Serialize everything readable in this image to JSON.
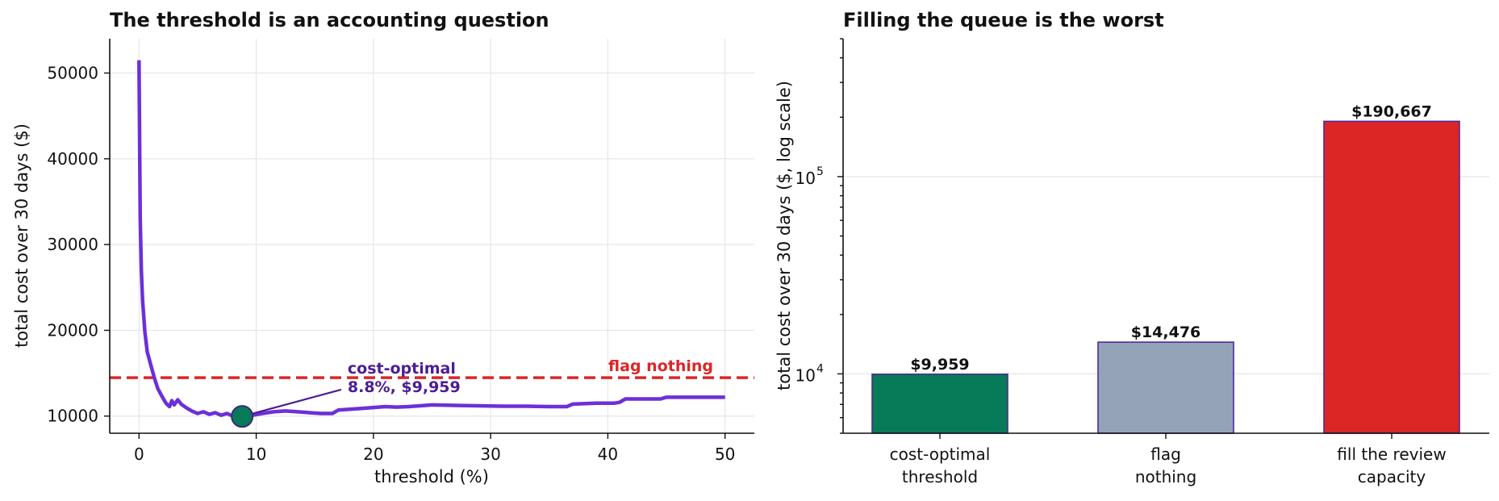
{
  "colors": {
    "line": "#6d2fd8",
    "optimal_marker": "#077a57",
    "optimal_marker_edge": "#3b2a7a",
    "flag_nothing": "#dc2626",
    "annotation_text": "#4c1d95",
    "bar_edge": "#4c2a9a"
  },
  "chart_data": [
    {
      "type": "line",
      "title": "The threshold is an accounting question",
      "xlabel": "threshold (%)",
      "ylabel": "total cost over 30 days ($)",
      "xlim": [
        -2.5,
        52.5
      ],
      "ylim": [
        8000,
        54000
      ],
      "x_ticks": [
        0,
        10,
        20,
        30,
        40,
        50
      ],
      "y_ticks": [
        10000,
        20000,
        30000,
        40000,
        50000
      ],
      "grid": true,
      "series": [
        {
          "x": [
            0,
            0.1,
            0.2,
            0.3,
            0.5,
            0.7,
            1.0,
            1.3,
            1.6,
            2.0,
            2.3,
            2.6,
            2.8,
            3.0,
            3.3,
            3.6,
            4.0,
            4.5,
            5.0,
            5.5,
            6.0,
            6.5,
            7.0,
            7.5,
            8.0,
            8.8,
            9.5,
            10.5,
            11.5,
            12.5,
            13.5,
            14.5,
            15.5,
            16.5,
            17.0,
            18.0,
            19.0,
            20.0,
            21.0,
            22.0,
            23.0,
            24.0,
            25.0,
            27.0,
            29.0,
            31.0,
            33.0,
            35.0,
            36.5,
            37.0,
            39.0,
            40.5,
            41.0,
            41.5,
            43.0,
            44.5,
            45.0,
            47.0,
            50.0
          ],
          "y": [
            51500,
            33000,
            27000,
            23500,
            19800,
            17500,
            16000,
            14500,
            13200,
            12200,
            11500,
            11100,
            11800,
            11300,
            11900,
            11400,
            11000,
            10600,
            10300,
            10500,
            10200,
            10400,
            10100,
            10300,
            10000,
            9959,
            10050,
            10300,
            10500,
            10600,
            10500,
            10400,
            10300,
            10300,
            10700,
            10800,
            10900,
            11000,
            11100,
            11050,
            11100,
            11200,
            11300,
            11250,
            11200,
            11150,
            11150,
            11100,
            11100,
            11400,
            11500,
            11500,
            11600,
            12000,
            12000,
            12000,
            12200,
            12200,
            12200
          ]
        }
      ],
      "reference_line": {
        "y": 14476,
        "label": "flag nothing"
      },
      "optimum": {
        "x": 8.8,
        "y": 9959
      },
      "annotation": {
        "line1": "cost-optimal",
        "line2": "8.8%, $9,959",
        "at": {
          "x": 8.8,
          "y": 9959
        },
        "text_at": {
          "x": 17.8,
          "y": 12900
        }
      }
    },
    {
      "type": "bar",
      "title": "Filling the queue is the worst",
      "ylabel": "total cost over 30 days ($, log scale)",
      "yscale": "log",
      "ylim": [
        5000,
        500000
      ],
      "y_ticks": [
        10000,
        100000
      ],
      "y_tick_labels": [
        {
          "base": "10",
          "exp": "4"
        },
        {
          "base": "10",
          "exp": "5"
        }
      ],
      "grid": true,
      "categories": [
        {
          "line1": "cost-optimal",
          "line2": "threshold"
        },
        {
          "line1": "flag",
          "line2": "nothing"
        },
        {
          "line1": "fill the review",
          "line2": "capacity"
        }
      ],
      "values": [
        9959,
        14476,
        190667
      ],
      "value_labels": [
        "$9,959",
        "$14,476",
        "$190,667"
      ],
      "bar_colors": [
        "#077a57",
        "#94a3b8",
        "#dc2626"
      ]
    }
  ]
}
